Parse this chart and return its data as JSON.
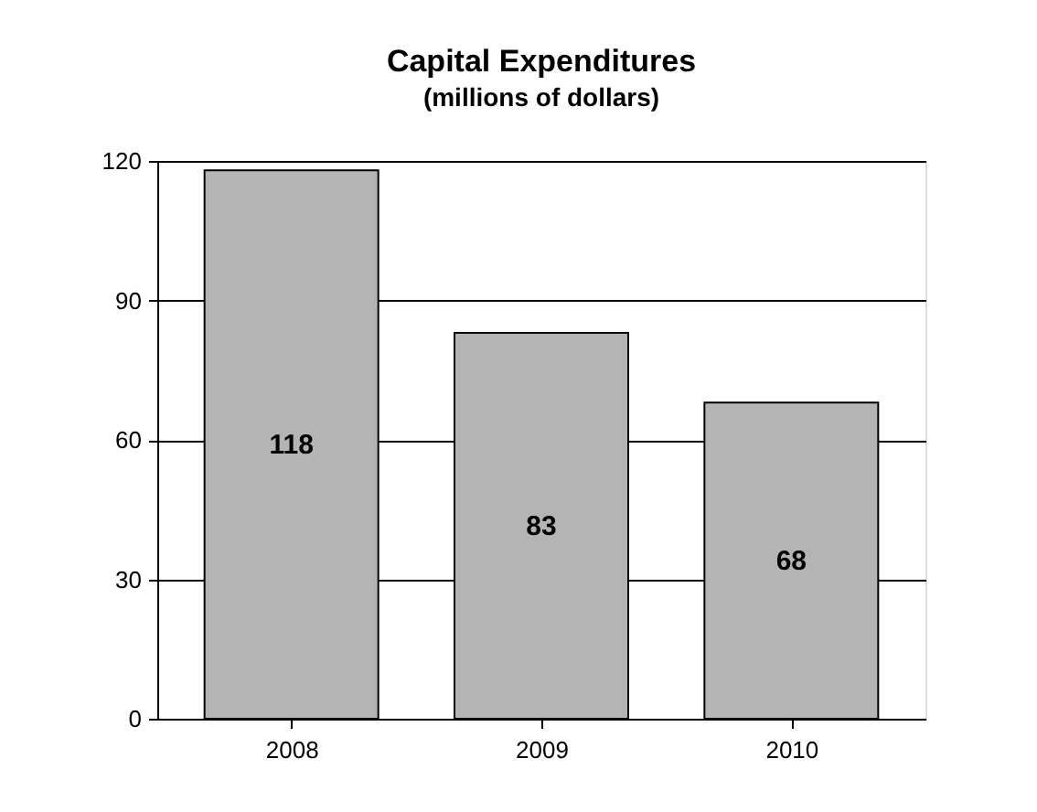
{
  "chart_data": {
    "type": "bar",
    "title": "Capital Expenditures",
    "subtitle": "(millions of dollars)",
    "categories": [
      "2008",
      "2009",
      "2010"
    ],
    "values": [
      118,
      83,
      68
    ],
    "color": "#b4b4b4",
    "ylim": [
      0,
      120
    ],
    "yticks": [
      0,
      30,
      60,
      90,
      120
    ],
    "grid": "y",
    "data_labels": true
  }
}
